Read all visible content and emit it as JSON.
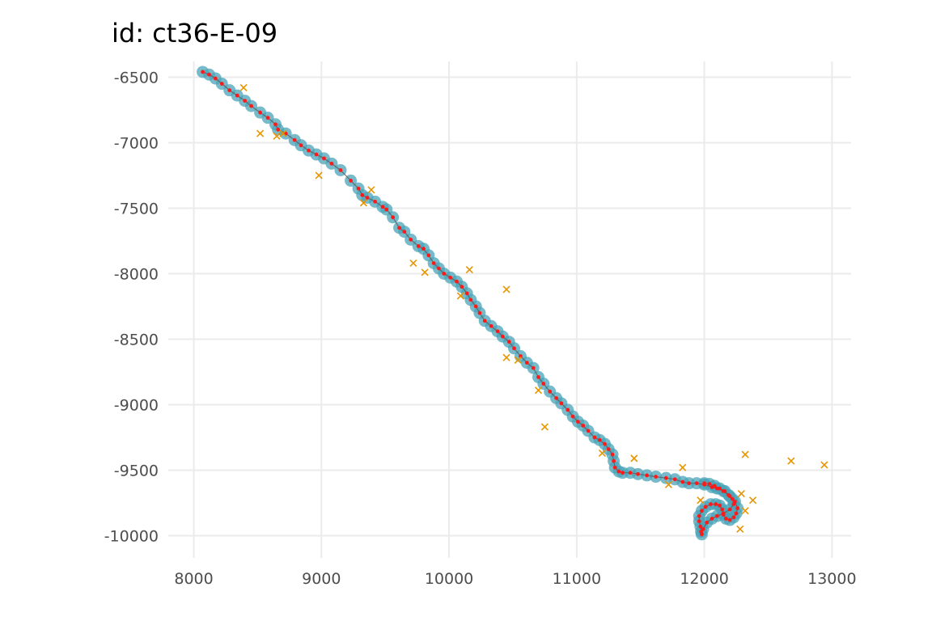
{
  "chart_data": {
    "type": "scatter",
    "title": "id: ct36-E-09",
    "xlabel": "",
    "ylabel": "",
    "xlim": [
      7800,
      13150
    ],
    "ylim": [
      -10170,
      -6380
    ],
    "x_ticks": [
      8000,
      9000,
      10000,
      11000,
      12000,
      13000
    ],
    "x_tick_labels": [
      "8000",
      "9000",
      "10000",
      "11000",
      "12000",
      "13000"
    ],
    "y_ticks": [
      -6500,
      -7000,
      -7500,
      -8000,
      -8500,
      -9000,
      -9500,
      -10000
    ],
    "y_tick_labels": [
      "-6500",
      "-7000",
      "-7500",
      "-8000",
      "-8500",
      "-9000",
      "-9500",
      "-10000"
    ],
    "grid": true,
    "legend": "none",
    "colors": {
      "track_halo": "#4aa3b8",
      "track_line": "#5a5a5a",
      "track_points": "#ff1a1a",
      "outliers": "#e69500",
      "grid": "#ebebeb",
      "tick_text": "#4d4d4d"
    },
    "series": [
      {
        "marker": "circle",
        "points": [
          [
            8070,
            -6460
          ],
          [
            8120,
            -6480
          ],
          [
            8170,
            -6510
          ],
          [
            8220,
            -6550
          ],
          [
            8280,
            -6600
          ],
          [
            8340,
            -6640
          ],
          [
            8400,
            -6680
          ],
          [
            8450,
            -6720
          ],
          [
            8520,
            -6770
          ],
          [
            8580,
            -6810
          ],
          [
            8640,
            -6860
          ],
          [
            8660,
            -6900
          ],
          [
            8720,
            -6930
          ],
          [
            8790,
            -6980
          ],
          [
            8840,
            -7020
          ],
          [
            8900,
            -7060
          ],
          [
            8960,
            -7090
          ],
          [
            9020,
            -7120
          ],
          [
            9080,
            -7160
          ],
          [
            9150,
            -7210
          ],
          [
            9230,
            -7290
          ],
          [
            9290,
            -7350
          ],
          [
            9320,
            -7400
          ],
          [
            9360,
            -7420
          ],
          [
            9420,
            -7450
          ],
          [
            9480,
            -7490
          ],
          [
            9510,
            -7510
          ],
          [
            9560,
            -7570
          ],
          [
            9610,
            -7650
          ],
          [
            9650,
            -7680
          ],
          [
            9700,
            -7740
          ],
          [
            9760,
            -7790
          ],
          [
            9800,
            -7810
          ],
          [
            9840,
            -7860
          ],
          [
            9880,
            -7920
          ],
          [
            9920,
            -7960
          ],
          [
            9960,
            -8000
          ],
          [
            10010,
            -8030
          ],
          [
            10060,
            -8060
          ],
          [
            10100,
            -8100
          ],
          [
            10140,
            -8150
          ],
          [
            10170,
            -8200
          ],
          [
            10210,
            -8250
          ],
          [
            10240,
            -8300
          ],
          [
            10280,
            -8360
          ],
          [
            10330,
            -8400
          ],
          [
            10380,
            -8440
          ],
          [
            10420,
            -8480
          ],
          [
            10470,
            -8520
          ],
          [
            10510,
            -8570
          ],
          [
            10560,
            -8630
          ],
          [
            10610,
            -8680
          ],
          [
            10660,
            -8720
          ],
          [
            10700,
            -8790
          ],
          [
            10740,
            -8840
          ],
          [
            10790,
            -8900
          ],
          [
            10840,
            -8950
          ],
          [
            10880,
            -8990
          ],
          [
            10930,
            -9040
          ],
          [
            10970,
            -9090
          ],
          [
            11010,
            -9130
          ],
          [
            11050,
            -9160
          ],
          [
            11090,
            -9200
          ],
          [
            11140,
            -9250
          ],
          [
            11180,
            -9270
          ],
          [
            11220,
            -9300
          ],
          [
            11250,
            -9340
          ],
          [
            11280,
            -9380
          ],
          [
            11290,
            -9430
          ],
          [
            11300,
            -9480
          ],
          [
            11330,
            -9510
          ],
          [
            11360,
            -9520
          ],
          [
            11420,
            -9520
          ],
          [
            11480,
            -9530
          ],
          [
            11550,
            -9540
          ],
          [
            11620,
            -9550
          ],
          [
            11700,
            -9560
          ],
          [
            11770,
            -9570
          ],
          [
            11830,
            -9590
          ],
          [
            11880,
            -9600
          ],
          [
            11940,
            -9600
          ],
          [
            12000,
            -9610
          ],
          [
            12060,
            -9630
          ],
          [
            12100,
            -9640
          ],
          [
            12150,
            -9660
          ],
          [
            12200,
            -9700
          ],
          [
            12240,
            -9740
          ],
          [
            12260,
            -9790
          ],
          [
            12250,
            -9830
          ],
          [
            12230,
            -9860
          ],
          [
            12200,
            -9880
          ],
          [
            12170,
            -9870
          ],
          [
            12150,
            -9840
          ],
          [
            12140,
            -9800
          ],
          [
            12120,
            -9770
          ],
          [
            12090,
            -9760
          ],
          [
            12050,
            -9760
          ],
          [
            12010,
            -9780
          ],
          [
            11980,
            -9810
          ],
          [
            11960,
            -9850
          ],
          [
            11960,
            -9890
          ],
          [
            11970,
            -9930
          ],
          [
            11975,
            -9970
          ],
          [
            11980,
            -9990
          ],
          [
            11990,
            -9950
          ],
          [
            12020,
            -9900
          ],
          [
            12060,
            -9870
          ],
          [
            12100,
            -9850
          ],
          [
            12150,
            -9830
          ],
          [
            12200,
            -9800
          ],
          [
            12230,
            -9760
          ],
          [
            12220,
            -9720
          ],
          [
            12190,
            -9690
          ],
          [
            12160,
            -9660
          ],
          [
            12120,
            -9640
          ],
          [
            12080,
            -9620
          ],
          [
            12040,
            -9605
          ],
          [
            12000,
            -9600
          ]
        ]
      },
      {
        "marker": "x",
        "points": [
          [
            8390,
            -6580
          ],
          [
            8520,
            -6930
          ],
          [
            8650,
            -6950
          ],
          [
            8700,
            -6930
          ],
          [
            8980,
            -7250
          ],
          [
            9330,
            -7460
          ],
          [
            9390,
            -7360
          ],
          [
            9720,
            -7920
          ],
          [
            9810,
            -7990
          ],
          [
            10090,
            -8170
          ],
          [
            10160,
            -7970
          ],
          [
            10450,
            -8120
          ],
          [
            10450,
            -8640
          ],
          [
            10540,
            -8660
          ],
          [
            10700,
            -8890
          ],
          [
            10750,
            -9170
          ],
          [
            11200,
            -9370
          ],
          [
            11450,
            -9410
          ],
          [
            11830,
            -9480
          ],
          [
            11720,
            -9610
          ],
          [
            11970,
            -9730
          ],
          [
            12290,
            -9680
          ],
          [
            12320,
            -9380
          ],
          [
            12380,
            -9730
          ],
          [
            12320,
            -9810
          ],
          [
            12280,
            -9950
          ],
          [
            12680,
            -9430
          ],
          [
            12940,
            -9460
          ]
        ]
      }
    ]
  }
}
